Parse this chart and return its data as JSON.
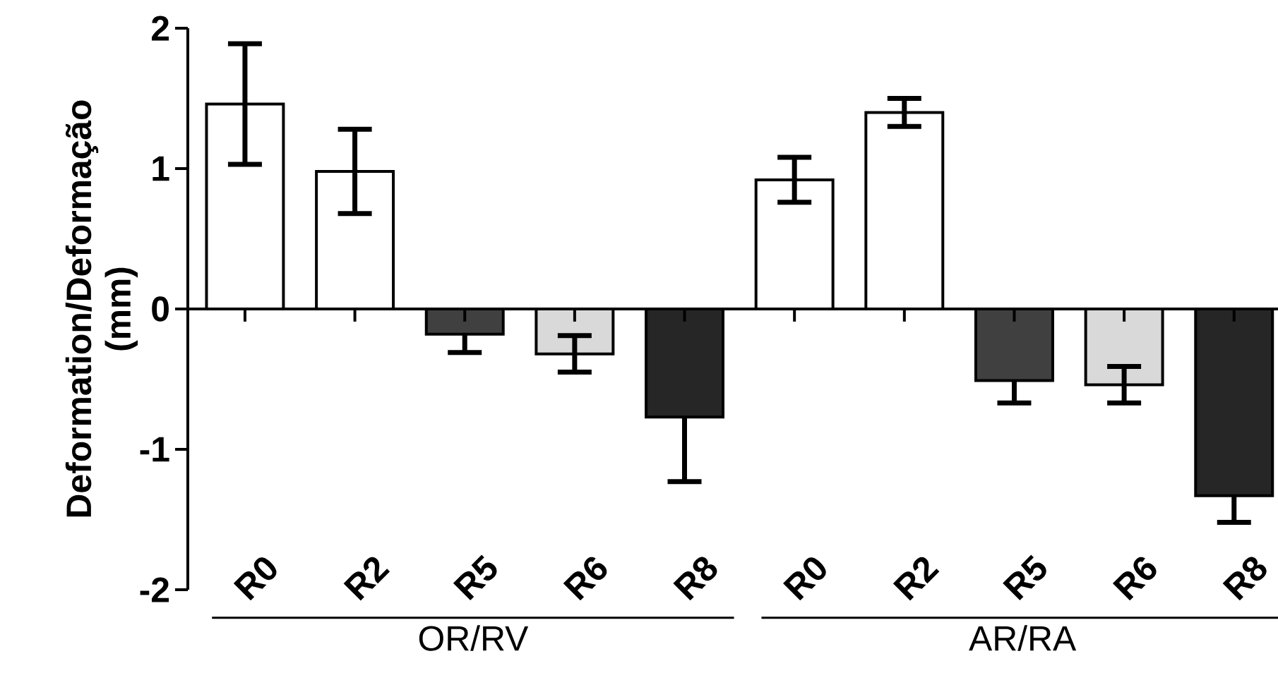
{
  "chart_data": {
    "type": "bar",
    "ylabel": "Deformation/Deformação (mm)",
    "categories": [
      "R0",
      "R2",
      "R5",
      "R6",
      "R8",
      "R0",
      "R2",
      "R5",
      "R6",
      "R8"
    ],
    "values": [
      1.46,
      0.98,
      -0.18,
      -0.32,
      -0.77,
      0.92,
      1.4,
      -0.51,
      -0.54,
      -1.33
    ],
    "errors": [
      0.43,
      0.3,
      [
        -0.31,
        -0.18
      ],
      0.13,
      [
        -1.23,
        -0.77
      ],
      0.16,
      0.1,
      [
        -0.67,
        -0.51
      ],
      0.13,
      [
        -1.52,
        -1.33
      ]
    ],
    "colors": [
      "#ffffff",
      "#ffffff",
      "#404040",
      "#d9d9d9",
      "#262626",
      "#ffffff",
      "#ffffff",
      "#404040",
      "#d9d9d9",
      "#262626"
    ],
    "ylim": [
      -2,
      2
    ],
    "yticks": [
      -2,
      -1,
      0,
      1,
      2
    ],
    "annotations": [
      "OR/RV",
      "AR/RA"
    ]
  }
}
